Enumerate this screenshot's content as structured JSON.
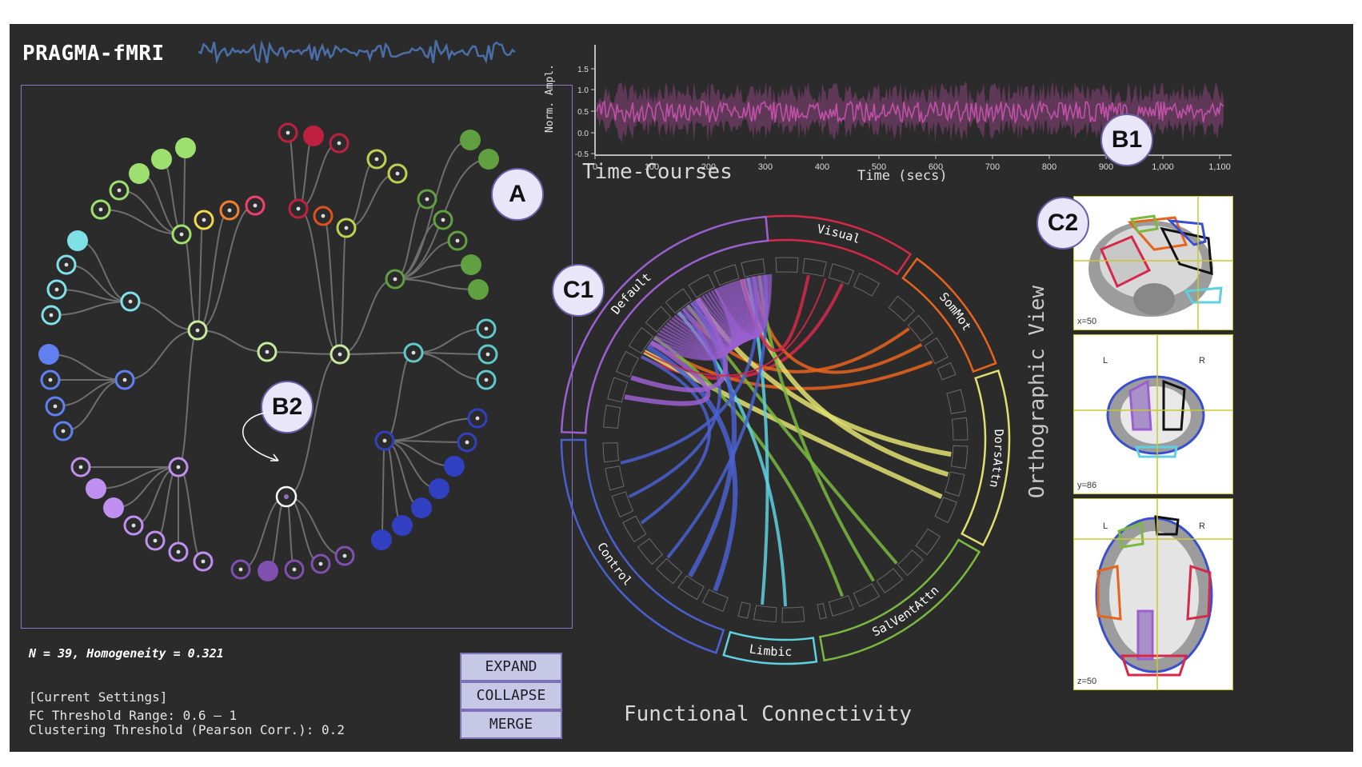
{
  "app": {
    "title": "PRAGMA-fMRI"
  },
  "markers": {
    "a": "A",
    "b1": "B1",
    "b2": "B2",
    "c1": "C1",
    "c2": "C2"
  },
  "stats": {
    "text": "N = 39, Homogeneity = 0.321"
  },
  "settings": {
    "header": "[Current Settings]",
    "fc_range": "FC Threshold Range: 0.6 – 1",
    "clustering": "Clustering Threshold (Pearson Corr.): 0.2"
  },
  "buttons": {
    "expand": "EXPAND",
    "collapse": "COLLAPSE",
    "merge": "MERGE"
  },
  "timecourse": {
    "title": "Time-Courses",
    "xlabel": "Time (secs)",
    "ylabel": "Norm. Ampl.",
    "x_ticks": [
      "0",
      "100",
      "200",
      "300",
      "400",
      "500",
      "600",
      "700",
      "800",
      "900",
      "1,000",
      "1,100"
    ],
    "y_ticks": [
      "1.5",
      "1.0",
      "0.5",
      "0.0",
      "-0.5"
    ],
    "color": "#c050a8"
  },
  "connectivity": {
    "title": "Functional Connectivity",
    "networks": [
      {
        "name": "Visual",
        "color": "#d8284a"
      },
      {
        "name": "SomMot",
        "color": "#e8641c"
      },
      {
        "name": "DorsAttn",
        "color": "#e0e070"
      },
      {
        "name": "SalVentAttn",
        "color": "#7ab840"
      },
      {
        "name": "Limbic",
        "color": "#5ed0e0"
      },
      {
        "name": "Control",
        "color": "#4a60d0"
      },
      {
        "name": "Default",
        "color": "#9a60d0"
      }
    ]
  },
  "ortho": {
    "title": "Orthographic View",
    "slices": [
      {
        "coord": "x=50",
        "left": "",
        "right": ""
      },
      {
        "coord": "y=86",
        "left": "L",
        "right": "R"
      },
      {
        "coord": "z=50",
        "left": "L",
        "right": "R"
      }
    ]
  },
  "colors": {
    "background": "#2b2b2b",
    "panel_border": "#8c74c4",
    "button_bg": "#c6c8e6"
  }
}
